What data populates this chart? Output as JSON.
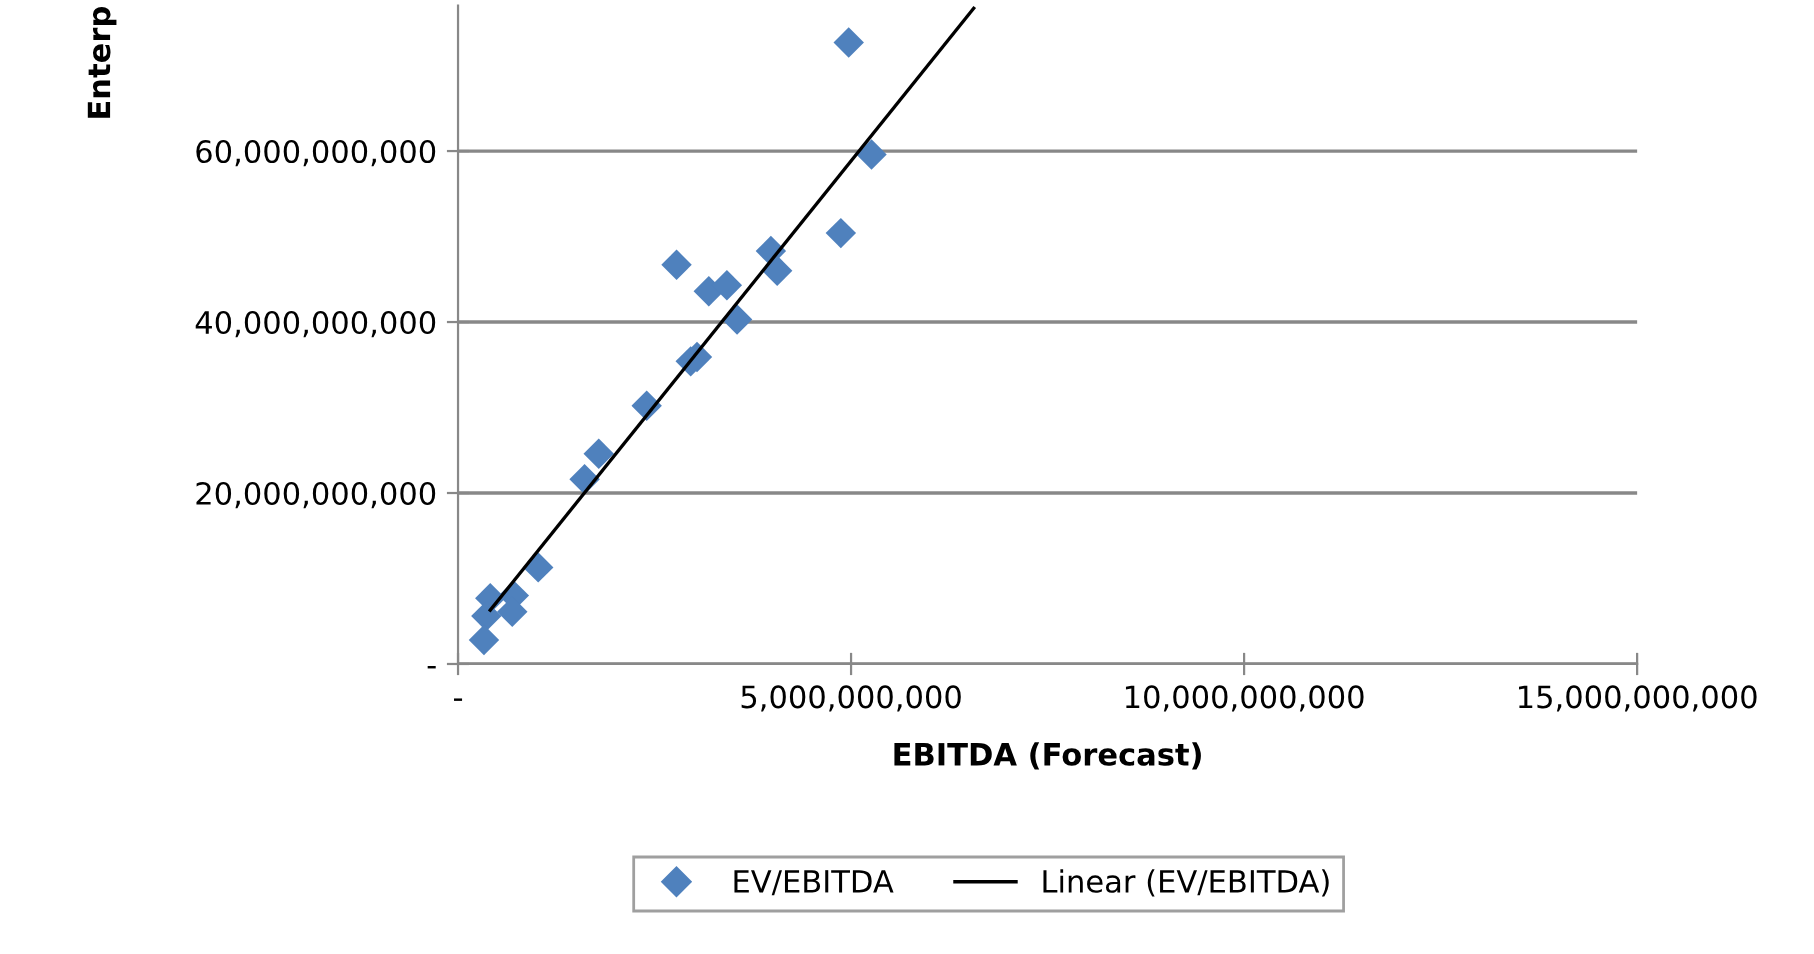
{
  "chart_data": {
    "type": "scatter",
    "xlabel": "EBITDA (Forecast)",
    "ylabel": "Enterp",
    "series": [
      {
        "name": "EV/EBITDA",
        "color": "#4f81bd",
        "marker": "diamond",
        "x": [
          4970000000,
          5260000000,
          4870000000,
          3980000000,
          4060000000,
          2780000000,
          3190000000,
          3420000000,
          3550000000,
          3040000000,
          2960000000,
          2400000000,
          1790000000,
          1610000000,
          1020000000,
          410000000,
          710000000,
          360000000,
          690000000,
          330000000
        ],
        "values": [
          72700000000,
          59600000000,
          50400000000,
          48300000000,
          46000000000,
          46700000000,
          43600000000,
          44300000000,
          40300000000,
          35900000000,
          35400000000,
          30200000000,
          24600000000,
          21600000000,
          11300000000,
          7700000000,
          8000000000,
          5600000000,
          6100000000,
          2800000000
        ]
      },
      {
        "name": "Linear (EV/EBITDA)",
        "type": "line",
        "color": "#000000",
        "marker": "none",
        "line_style": "solid",
        "x": [
          410000000,
          6560000000
        ],
        "values": [
          6300000000,
          76700000000
        ]
      }
    ],
    "xlim": [
      0,
      15000000000
    ],
    "xticks": [
      {
        "value": 0,
        "label": "-"
      },
      {
        "value": 5000000000,
        "label": "5,000,000,000"
      },
      {
        "value": 10000000000,
        "label": "10,000,000,000"
      },
      {
        "value": 15000000000,
        "label": "15,000,000,000"
      }
    ],
    "ylim": [
      0,
      77000000000
    ],
    "yticks": [
      {
        "value": 0,
        "label": "-"
      },
      {
        "value": 20000000000,
        "label": "20,000,000,000"
      },
      {
        "value": 40000000000,
        "label": "40,000,000,000"
      },
      {
        "value": 60000000000,
        "label": "60,000,000,000"
      }
    ],
    "grid": "y",
    "legend": "bottom"
  }
}
